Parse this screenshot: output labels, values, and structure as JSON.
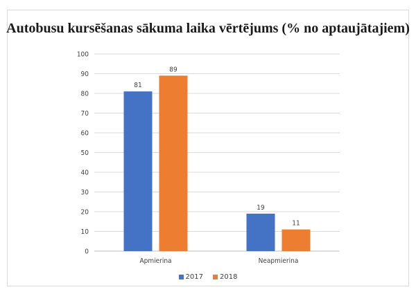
{
  "chart_data": {
    "type": "bar",
    "title": "Autobusu kursēšanas sākuma laika vērtējums (% no aptaujātajiem)",
    "categories": [
      "Apmierina",
      "Neapmierina"
    ],
    "series": [
      {
        "name": "2017",
        "values": [
          81,
          19
        ],
        "color": "#4472C4"
      },
      {
        "name": "2018",
        "values": [
          89,
          11
        ],
        "color": "#ED7D31"
      }
    ],
    "ylim": [
      0,
      100
    ],
    "yticks": [
      0,
      10,
      20,
      30,
      40,
      50,
      60,
      70,
      80,
      90,
      100
    ],
    "grid": true,
    "legend_position": "bottom"
  }
}
